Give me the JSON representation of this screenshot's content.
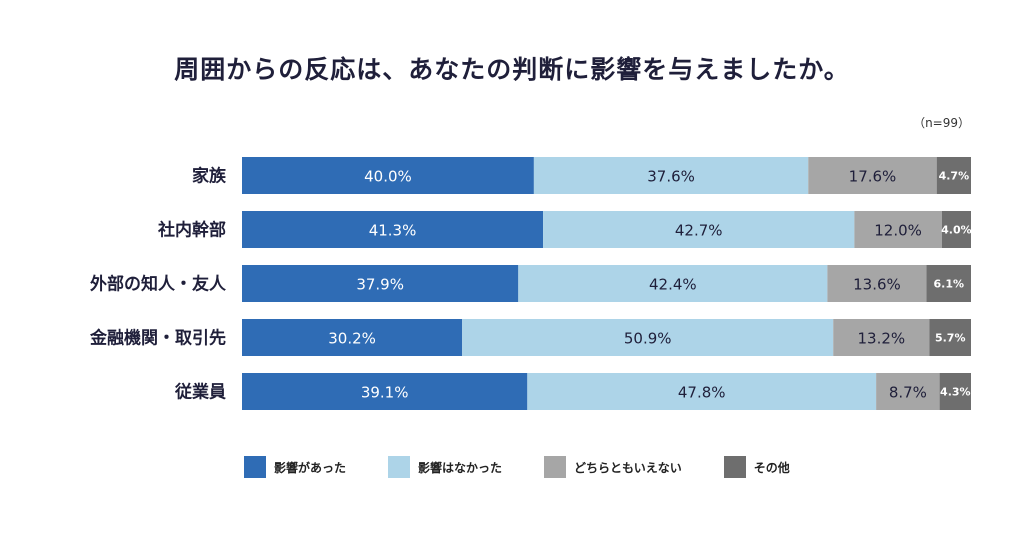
{
  "title": "周囲からの反応は、あなたの判断に影響を与えましたか。",
  "note": "（n=99）",
  "colors": {
    "s1": "#2f6cb5",
    "s2": "#add4e8",
    "s3": "#a6a6a6",
    "s4": "#6e6e6e"
  },
  "chart_data": {
    "type": "bar",
    "orientation": "horizontal-stacked-100",
    "title": "周囲からの反応は、あなたの判断に影響を与えましたか。",
    "note": "（n=99）",
    "categories": [
      "家族",
      "社内幹部",
      "外部の知人・友人",
      "金融機関・取引先",
      "従業員"
    ],
    "series": [
      {
        "name": "影響があった",
        "color": "#2f6cb5",
        "values": [
          40.0,
          41.3,
          37.9,
          30.2,
          39.1
        ]
      },
      {
        "name": "影響はなかった",
        "color": "#add4e8",
        "values": [
          37.6,
          42.7,
          42.4,
          50.9,
          47.8
        ]
      },
      {
        "name": "どちらともいえない",
        "color": "#a6a6a6",
        "values": [
          17.6,
          12.0,
          13.6,
          13.2,
          8.7
        ]
      },
      {
        "name": "その他",
        "color": "#6e6e6e",
        "values": [
          4.7,
          4.0,
          6.1,
          5.7,
          4.3
        ]
      }
    ],
    "value_labels": [
      [
        "40.0%",
        "37.6%",
        "17.6%",
        "4.7%"
      ],
      [
        "41.3%",
        "42.7%",
        "12.0%",
        "4.0%"
      ],
      [
        "37.9%",
        "42.4%",
        "13.6%",
        "6.1%"
      ],
      [
        "30.2%",
        "50.9%",
        "13.2%",
        "5.7%"
      ],
      [
        "39.1%",
        "47.8%",
        "8.7%",
        "4.3%"
      ]
    ],
    "xlim": [
      0,
      100
    ],
    "grid": false,
    "legend_position": "bottom"
  }
}
